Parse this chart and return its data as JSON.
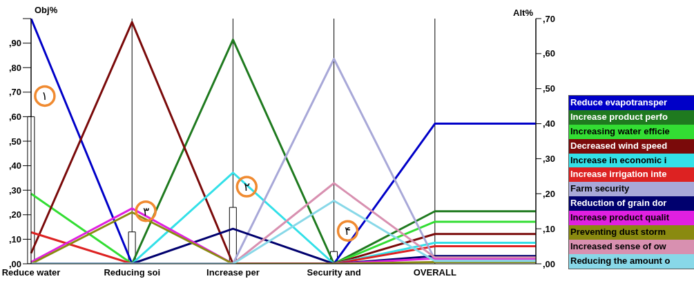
{
  "chart_data": {
    "type": "line",
    "categories": [
      "Reduce water",
      "Reducing soi",
      "Increase per",
      "Security and",
      "OVERALL",
      null
    ],
    "ylabel": "Obj%",
    "y2label": "Alt%",
    "ylim": [
      0,
      100
    ],
    "yticks": [
      {
        "value": 0,
        "label": ",00"
      },
      {
        "value": 10,
        "label": ",10"
      },
      {
        "value": 20,
        "label": ",20"
      },
      {
        "value": 30,
        "label": ",30"
      },
      {
        "value": 40,
        "label": ",40"
      },
      {
        "value": 50,
        "label": ",50"
      },
      {
        "value": 60,
        "label": ",60"
      },
      {
        "value": 70,
        "label": ",70"
      },
      {
        "value": 80,
        "label": ",80"
      },
      {
        "value": 90,
        "label": ",90"
      },
      {
        "value": 100,
        "label": null
      }
    ],
    "y2lim": [
      0,
      70
    ],
    "y2ticks": [
      {
        "value": 0,
        "label": ",00"
      },
      {
        "value": 10,
        "label": ",10"
      },
      {
        "value": 20,
        "label": ",20"
      },
      {
        "value": 30,
        "label": ",30"
      },
      {
        "value": 40,
        "label": ",40"
      },
      {
        "value": 50,
        "label": ",50"
      },
      {
        "value": 60,
        "label": ",60"
      },
      {
        "value": 70,
        "label": ",70"
      }
    ],
    "grid": "x",
    "legend": "right",
    "marker": "none",
    "line_style": "solid",
    "annotations": [
      "١",
      "٣",
      "٢",
      "۴"
    ],
    "series": [
      {
        "type": "bar",
        "color": "#ffffff",
        "values": [
          60,
          13,
          23,
          5,
          null,
          null
        ]
      },
      {
        "name": "Reduce evapotransper",
        "color": "#0000c8",
        "axis": "y2",
        "values": [
          70,
          0,
          0,
          0,
          40,
          40
        ]
      },
      {
        "name": "Increase product perfo",
        "color": "#1f7a1f",
        "axis": "y2",
        "values": [
          0,
          0,
          64,
          0,
          15,
          15
        ]
      },
      {
        "name": "Increasing water efficie",
        "color": "#33dd33",
        "axis": "y2",
        "values": [
          20,
          0,
          0,
          0,
          12,
          12
        ]
      },
      {
        "name": "Decreased wind speed",
        "color": "#7a0a0a",
        "axis": "y2",
        "values": [
          3,
          69,
          0,
          0,
          8.5,
          8.5
        ]
      },
      {
        "name": "Increase in economic i",
        "color": "#33e0e8",
        "axis": "y2",
        "values": [
          0,
          0,
          26,
          0,
          6,
          6
        ]
      },
      {
        "name": "Increase irrigation inte",
        "color": "#dd2222",
        "axis": "y2",
        "values": [
          9,
          0,
          0,
          0,
          5,
          5
        ]
      },
      {
        "name": "Farm security",
        "color": "#a8a8d8",
        "axis": "y2",
        "values": [
          0,
          0,
          0,
          58.5,
          1.2,
          1.2
        ]
      },
      {
        "name": "Reduction of grain dor",
        "color": "#00006e",
        "axis": "y2",
        "values": [
          0,
          0,
          10,
          0,
          2.2,
          2.2
        ]
      },
      {
        "name": "Increase product qualit",
        "color": "#e020e0",
        "axis": "y2",
        "values": [
          0.5,
          15.8,
          0,
          0,
          1.5,
          1.5
        ]
      },
      {
        "name": "Preventing dust storm",
        "color": "#8a8a10",
        "axis": "y2",
        "values": [
          0,
          14.7,
          0,
          0,
          0.5,
          0.5
        ]
      },
      {
        "name": "Increased sense of ow",
        "color": "#d890b0",
        "axis": "y2",
        "values": [
          0,
          0,
          0,
          23,
          1.8,
          1.8
        ]
      },
      {
        "name": "Reducing the amount o",
        "color": "#88d8e8",
        "axis": "y2",
        "values": [
          0,
          0,
          0,
          18,
          0.8,
          0.8
        ]
      }
    ]
  }
}
